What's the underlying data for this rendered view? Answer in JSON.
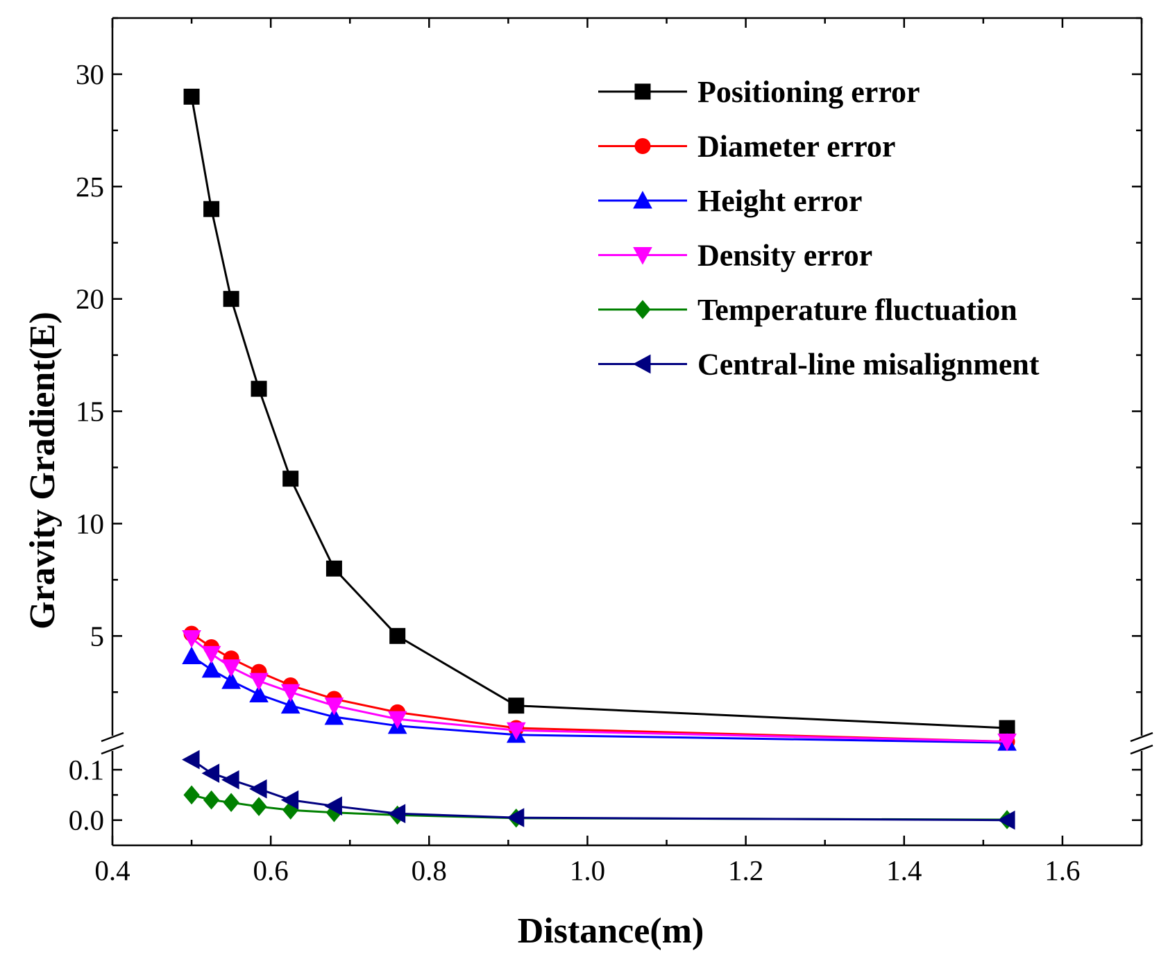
{
  "chart_data": {
    "type": "line",
    "title": "",
    "xlabel": "Distance(m)",
    "ylabel": "Gravity Gradient(E)",
    "xlim": [
      0.4,
      1.7
    ],
    "x_ticks": [
      "0.4",
      "0.6",
      "0.8",
      "1.0",
      "1.2",
      "1.4",
      "1.6"
    ],
    "x_tick_values": [
      0.4,
      0.6,
      0.8,
      1.0,
      1.2,
      1.4,
      1.6
    ],
    "y_axis_break": true,
    "y_upper": {
      "ylim": [
        0.5,
        32.5
      ],
      "ticks": [
        "5",
        "10",
        "15",
        "20",
        "25",
        "30"
      ],
      "tick_values": [
        5,
        10,
        15,
        20,
        25,
        30
      ]
    },
    "y_lower": {
      "ylim": [
        -0.05,
        0.14
      ],
      "ticks": [
        "0.0",
        "0.1"
      ],
      "tick_values": [
        0.0,
        0.1
      ]
    },
    "legend_position": "top-right",
    "x": [
      0.5,
      0.525,
      0.55,
      0.585,
      0.625,
      0.68,
      0.76,
      0.91,
      1.53
    ],
    "series": [
      {
        "name": "Positioning error",
        "color": "#000000",
        "marker": "square",
        "panel": "upper",
        "values": [
          29.0,
          24.0,
          20.0,
          16.0,
          12.0,
          8.0,
          5.0,
          1.9,
          0.9
        ]
      },
      {
        "name": "Diameter error",
        "color": "#ff0000",
        "marker": "circle",
        "panel": "upper",
        "values": [
          5.1,
          4.5,
          4.0,
          3.4,
          2.8,
          2.2,
          1.6,
          0.9,
          0.3
        ]
      },
      {
        "name": "Height error",
        "color": "#0000ff",
        "marker": "triangle-up",
        "panel": "upper",
        "values": [
          4.1,
          3.5,
          3.0,
          2.4,
          1.9,
          1.4,
          1.0,
          0.6,
          0.25
        ]
      },
      {
        "name": "Density error",
        "color": "#ff00ff",
        "marker": "triangle-down",
        "panel": "upper",
        "values": [
          4.9,
          4.2,
          3.6,
          3.0,
          2.5,
          1.9,
          1.3,
          0.8,
          0.3
        ]
      },
      {
        "name": "Temperature fluctuation",
        "color": "#008000",
        "marker": "diamond",
        "panel": "lower",
        "values": [
          0.05,
          0.04,
          0.035,
          0.027,
          0.02,
          0.015,
          0.01,
          0.004,
          0.001
        ]
      },
      {
        "name": "Central-line misalignment",
        "color": "#000080",
        "marker": "triangle-left",
        "panel": "lower",
        "values": [
          0.12,
          0.093,
          0.08,
          0.062,
          0.04,
          0.028,
          0.013,
          0.005,
          0.0
        ]
      }
    ]
  }
}
